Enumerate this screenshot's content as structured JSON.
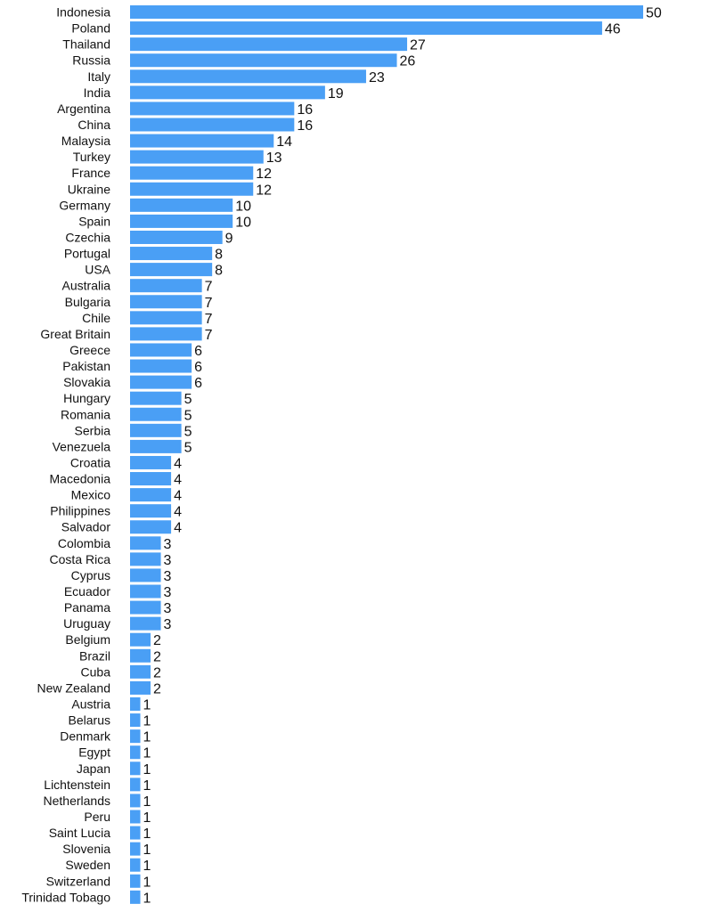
{
  "chart_data": {
    "type": "bar",
    "orientation": "horizontal",
    "title": "",
    "xlabel": "",
    "ylabel": "",
    "grid": false,
    "legend": "none",
    "xlim": [
      0,
      50
    ],
    "bar_color": "#4a9ff5",
    "categories": [
      "Indonesia",
      "Poland",
      "Thailand",
      "Russia",
      "Italy",
      "India",
      "Argentina",
      "China",
      "Malaysia",
      "Turkey",
      "France",
      "Ukraine",
      "Germany",
      "Spain",
      "Czechia",
      "Portugal",
      "USA",
      "Australia",
      "Bulgaria",
      "Chile",
      "Great Britain",
      "Greece",
      "Pakistan",
      "Slovakia",
      "Hungary",
      "Romania",
      "Serbia",
      "Venezuela",
      "Croatia",
      "Macedonia",
      "Mexico",
      "Philippines",
      "Salvador",
      "Colombia",
      "Costa Rica",
      "Cyprus",
      "Ecuador",
      "Panama",
      "Uruguay",
      "Belgium",
      "Brazil",
      "Cuba",
      "New Zealand",
      "Austria",
      "Belarus",
      "Denmark",
      "Egypt",
      "Japan",
      "Lichtenstein",
      "Netherlands",
      "Peru",
      "Saint Lucia",
      "Slovenia",
      "Sweden",
      "Switzerland",
      "Trinidad Tobago"
    ],
    "values": [
      50,
      46,
      27,
      26,
      23,
      19,
      16,
      16,
      14,
      13,
      12,
      12,
      10,
      10,
      9,
      8,
      8,
      7,
      7,
      7,
      7,
      6,
      6,
      6,
      5,
      5,
      5,
      5,
      4,
      4,
      4,
      4,
      4,
      3,
      3,
      3,
      3,
      3,
      3,
      2,
      2,
      2,
      2,
      1,
      1,
      1,
      1,
      1,
      1,
      1,
      1,
      1,
      1,
      1,
      1,
      1
    ]
  }
}
